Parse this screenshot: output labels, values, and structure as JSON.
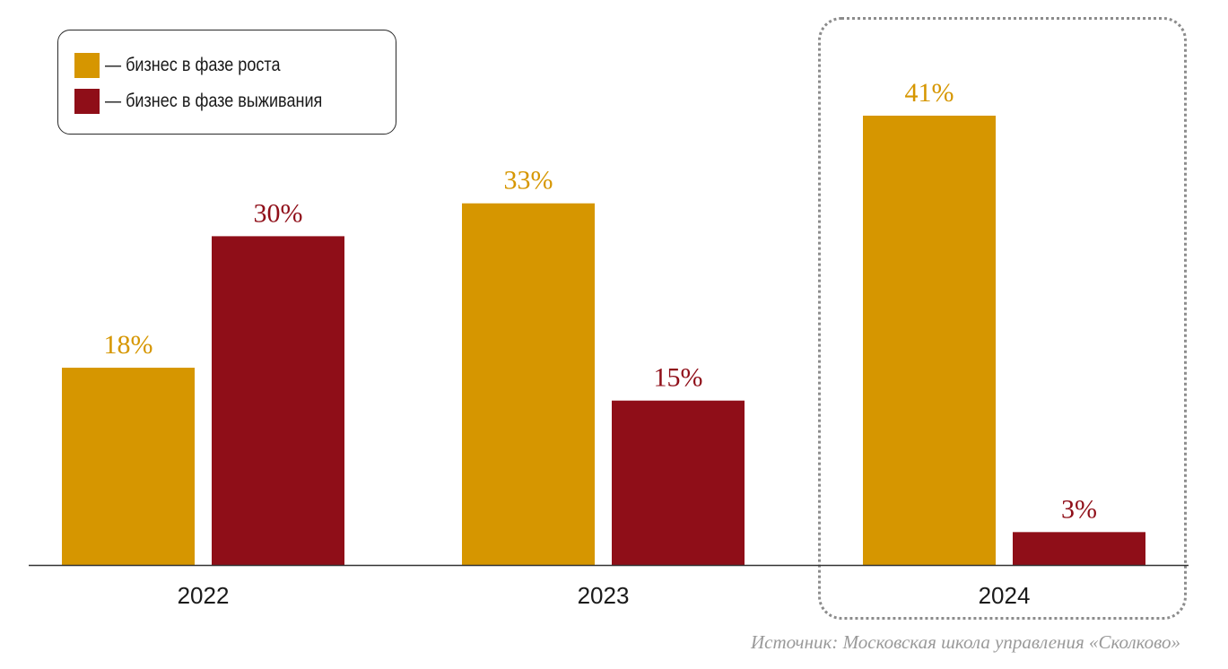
{
  "chart_data": {
    "type": "bar",
    "categories": [
      "2022",
      "2023",
      "2024"
    ],
    "series": [
      {
        "name": "— бизнес в фазе роста",
        "color": "#D69600",
        "values": [
          18,
          33,
          41
        ],
        "labels": [
          "18%",
          "33%",
          "41%"
        ]
      },
      {
        "name": "— бизнес в фазе выживания",
        "color": "#8F0E18",
        "values": [
          30,
          15,
          3
        ],
        "labels": [
          "30%",
          "15%",
          "3%"
        ]
      }
    ],
    "ylim": [
      0,
      45
    ],
    "grid": false,
    "legend_position": "top-left",
    "highlighted_category": "2024",
    "source": "Источник: Московская школа управления «Сколково»"
  }
}
